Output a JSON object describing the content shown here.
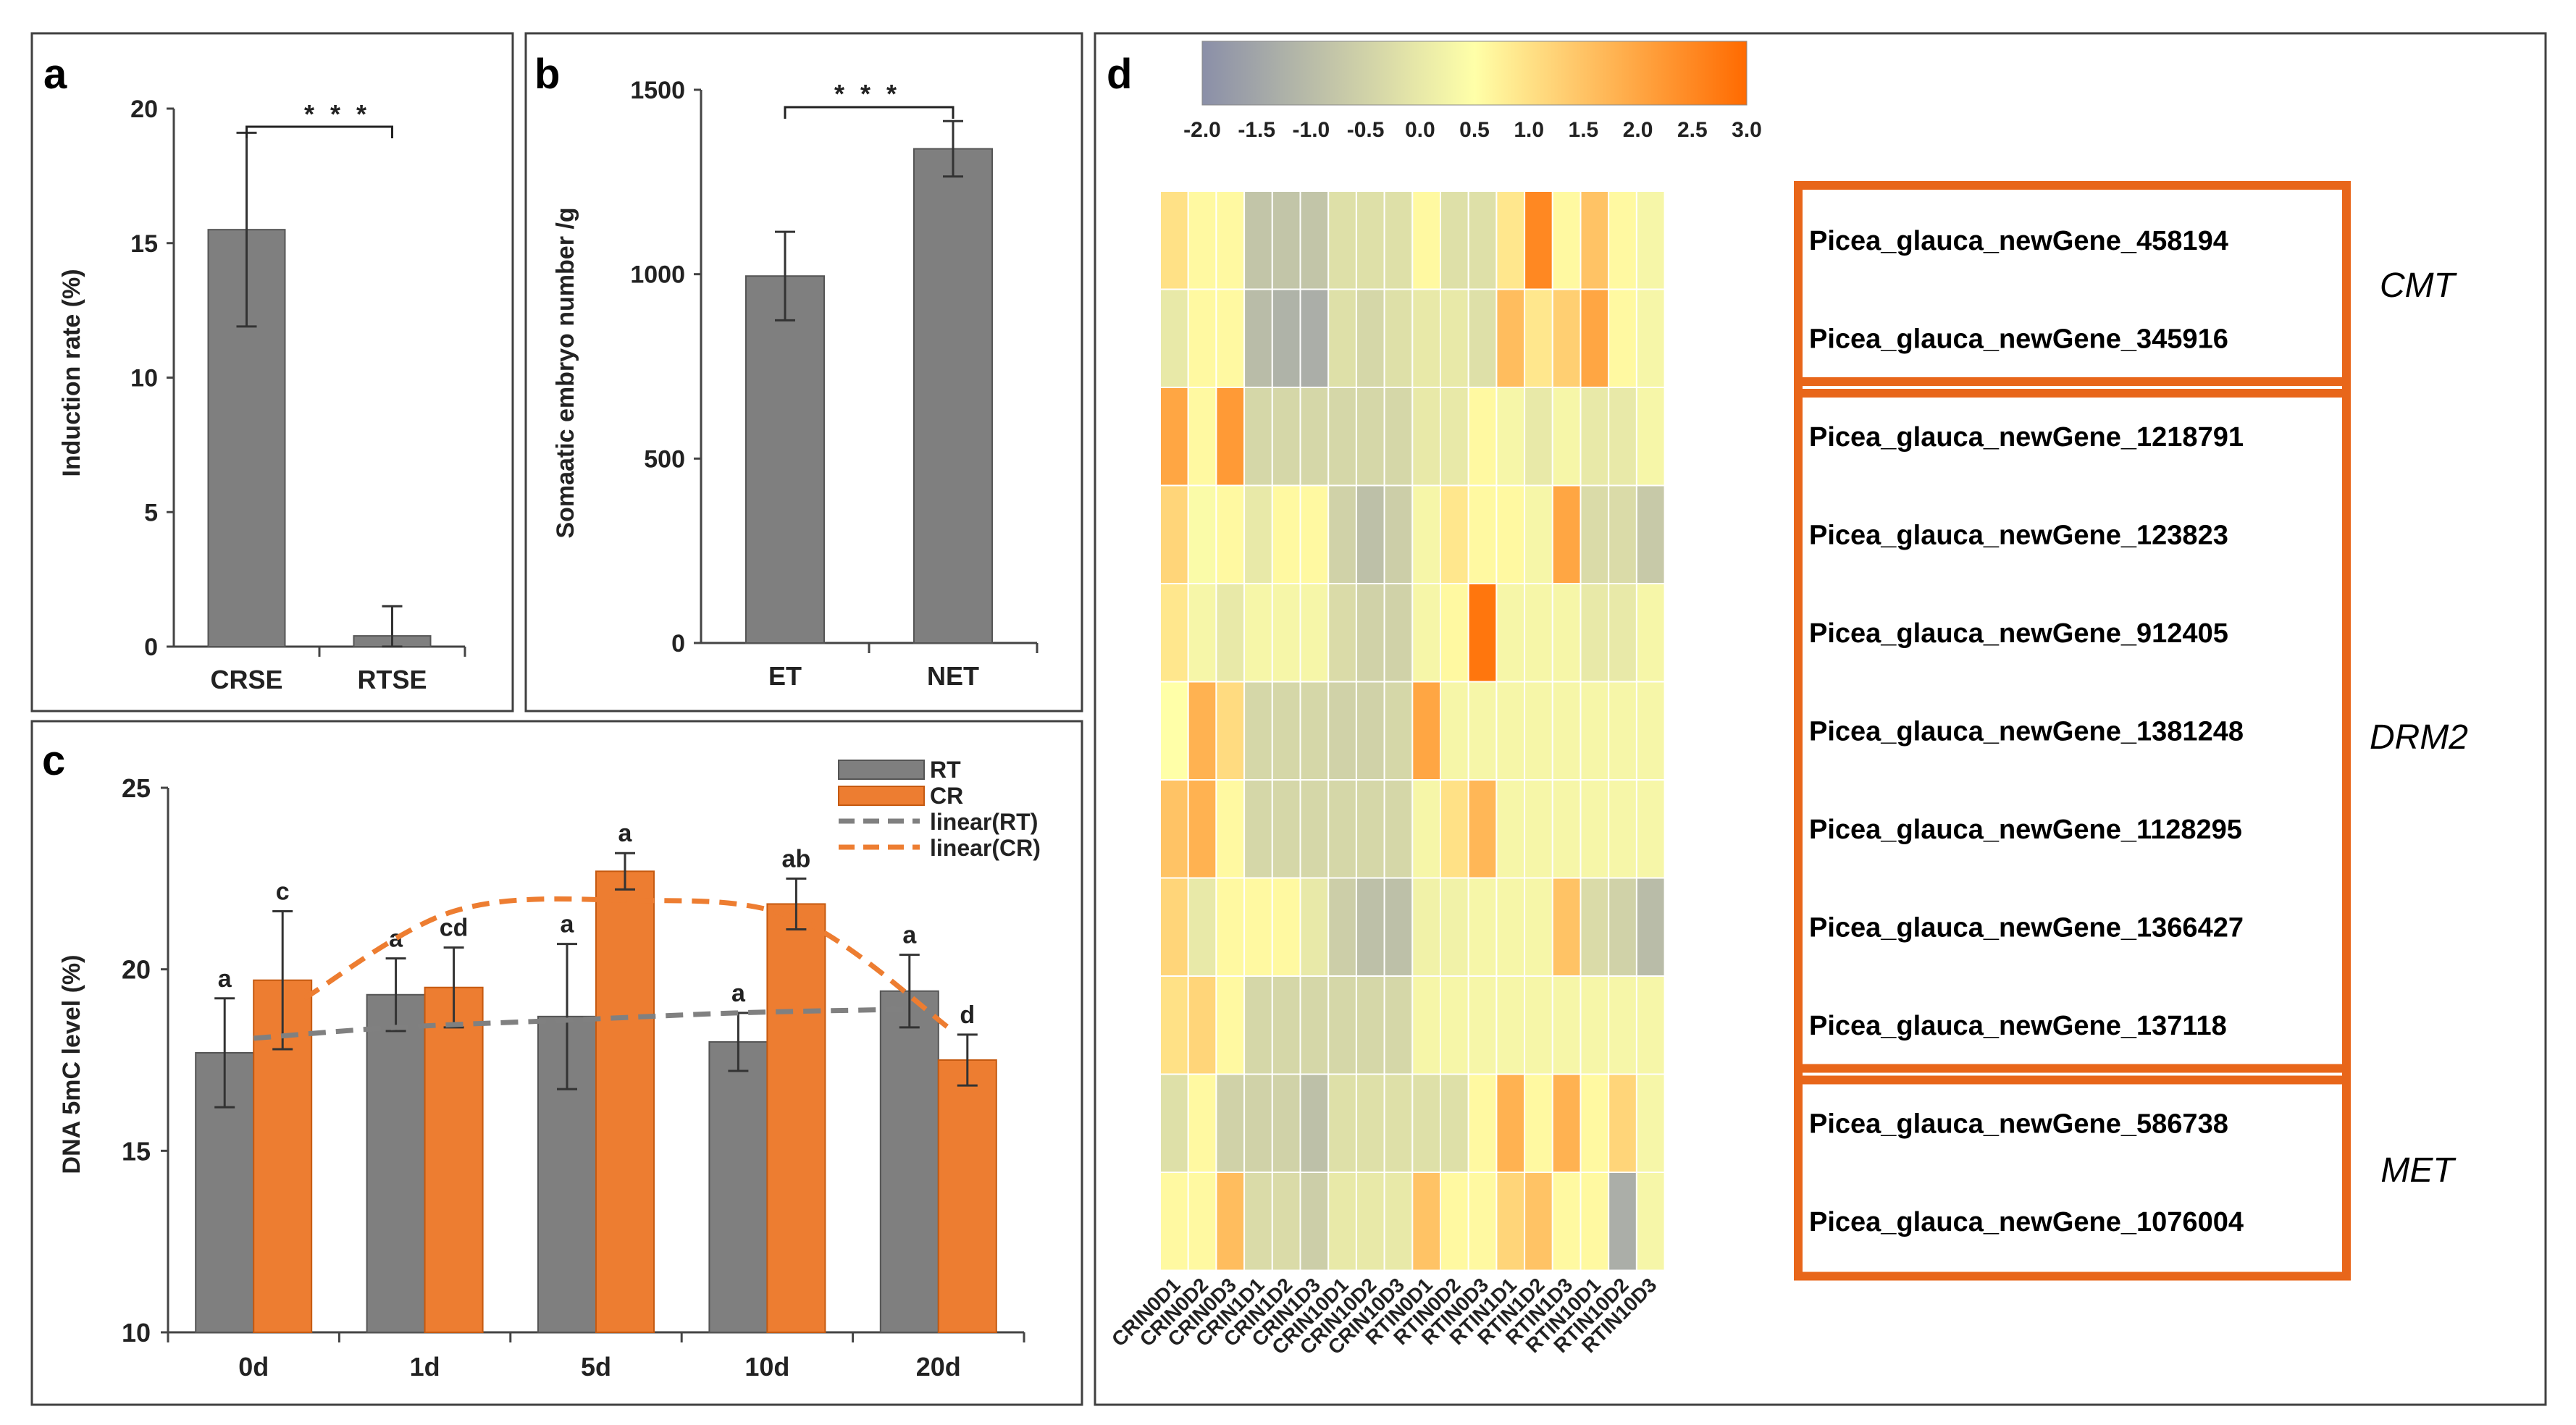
{
  "palette": {
    "gray_bar": "#7f7f7f",
    "orange_bar": "#ed7d31",
    "highlight_box": "#e8661a",
    "heat_low": "#8a8fa8",
    "heat_mid": "#ffffa8",
    "heat_high": "#ff6a00"
  },
  "chart_data": [
    {
      "panel": "a",
      "type": "bar",
      "categories": [
        "CRSE",
        "RTSE"
      ],
      "values": [
        15.5,
        0.4
      ],
      "errors": [
        3.6,
        1.1
      ],
      "ylabel": "Induction rate (%)",
      "ylim": [
        0,
        20
      ],
      "yticks": [
        "0",
        "5",
        "10",
        "15",
        "20"
      ],
      "significance": "* * *"
    },
    {
      "panel": "b",
      "type": "bar",
      "categories": [
        "ET",
        "NET"
      ],
      "values": [
        995,
        1340
      ],
      "errors": [
        120,
        75
      ],
      "ylabel": "Somaatic embryo number /g",
      "ylim": [
        0,
        1500
      ],
      "yticks": [
        "0",
        "500",
        "1000",
        "1500"
      ],
      "significance": "* * *"
    },
    {
      "panel": "c",
      "type": "bar",
      "categories": [
        "0d",
        "1d",
        "5d",
        "10d",
        "20d"
      ],
      "series": [
        {
          "name": "RT",
          "values": [
            17.7,
            19.3,
            18.7,
            18.0,
            19.4
          ],
          "errors": [
            1.5,
            1.0,
            2.0,
            0.8,
            1.0
          ],
          "letters": [
            "a",
            "a",
            "a",
            "a",
            "a"
          ]
        },
        {
          "name": "CR",
          "values": [
            19.7,
            19.5,
            22.7,
            21.8,
            17.5
          ],
          "errors": [
            1.9,
            1.1,
            0.5,
            0.7,
            0.7
          ],
          "letters": [
            "c",
            "cd",
            "a",
            "ab",
            "d"
          ]
        }
      ],
      "trendlines": [
        {
          "name": "linear(RT)",
          "points": [
            18.1,
            18.4,
            18.6,
            18.8,
            18.9
          ]
        },
        {
          "name": "linear(CR)",
          "points": [
            19.2,
            21.6,
            21.9,
            21.4,
            18.3
          ]
        }
      ],
      "ylabel": "DNA 5mC level (%)",
      "ylim": [
        10,
        25
      ],
      "yticks": [
        "10",
        "15",
        "20",
        "25"
      ],
      "legend": [
        "RT",
        "CR",
        "linear(RT)",
        "linear(CR)"
      ],
      "legend_position": "top-right"
    },
    {
      "panel": "d",
      "type": "heatmap",
      "columns": [
        "CRIN0D1",
        "CRIN0D2",
        "CRIN0D3",
        "CRIN1D1",
        "CRIN1D2",
        "CRIN1D3",
        "CRIN10D1",
        "CRIN10D2",
        "CRIN10D3",
        "RTIN0D1",
        "RTIN0D2",
        "RTIN0D3",
        "RTIN1D1",
        "RTIN1D2",
        "RTIN1D3",
        "RTIN10D1",
        "RTIN10D2",
        "RTIN10D3"
      ],
      "rows": [
        "Picea_glauca_newGene_458194",
        "Picea_glauca_newGene_345916",
        "Picea_glauca_newGene_1218791",
        "Picea_glauca_newGene_123823",
        "Picea_glauca_newGene_912405",
        "Picea_glauca_newGene_1381248",
        "Picea_glauca_newGene_1128295",
        "Picea_glauca_newGene_1366427",
        "Picea_glauca_newGene_137118",
        "Picea_glauca_newGene_586738",
        "Picea_glauca_newGene_1076004"
      ],
      "values": [
        [
          1.0,
          0.6,
          0.6,
          -0.8,
          -0.8,
          -0.8,
          -0.2,
          -0.2,
          -0.2,
          0.6,
          -0.2,
          -0.2,
          0.9,
          2.5,
          0.6,
          1.5,
          0.6,
          0.3
        ],
        [
          0.0,
          0.6,
          0.6,
          -1.0,
          -1.2,
          -1.3,
          -0.2,
          -0.4,
          -0.2,
          0.0,
          0.0,
          -0.2,
          1.6,
          0.9,
          1.3,
          2.0,
          0.6,
          0.3
        ],
        [
          2.0,
          0.6,
          2.2,
          -0.4,
          -0.4,
          -0.4,
          -0.4,
          -0.4,
          -0.4,
          0.0,
          0.0,
          0.6,
          0.3,
          0.0,
          0.3,
          0.0,
          0.0,
          0.3
        ],
        [
          1.2,
          0.4,
          0.6,
          0.0,
          0.6,
          0.6,
          -0.5,
          -0.9,
          -0.6,
          0.3,
          0.9,
          0.6,
          0.6,
          0.3,
          2.0,
          -0.3,
          -0.3,
          -0.7
        ],
        [
          0.9,
          0.3,
          0.0,
          0.3,
          0.3,
          0.3,
          -0.3,
          -0.5,
          -0.5,
          0.3,
          0.6,
          2.8,
          0.3,
          0.3,
          0.3,
          0.0,
          0.0,
          0.3
        ],
        [
          0.5,
          1.8,
          1.1,
          -0.4,
          -0.4,
          -0.4,
          -0.5,
          -0.5,
          -0.4,
          2.0,
          0.3,
          0.3,
          0.3,
          0.3,
          0.3,
          0.3,
          0.3,
          0.3
        ],
        [
          1.5,
          1.8,
          0.6,
          -0.4,
          -0.4,
          -0.4,
          -0.4,
          -0.4,
          -0.4,
          0.3,
          1.0,
          1.7,
          0.3,
          0.3,
          0.3,
          0.3,
          0.3,
          0.3
        ],
        [
          1.2,
          0.0,
          0.6,
          0.6,
          0.6,
          0.0,
          -0.6,
          -0.9,
          -0.9,
          0.2,
          0.2,
          0.3,
          0.3,
          0.3,
          1.5,
          -0.3,
          -0.5,
          -1.0
        ],
        [
          1.0,
          1.2,
          0.6,
          -0.4,
          -0.4,
          -0.4,
          -0.4,
          -0.4,
          -0.4,
          0.3,
          0.3,
          0.3,
          0.3,
          0.3,
          0.3,
          0.3,
          0.3,
          0.3
        ],
        [
          -0.2,
          0.6,
          -0.5,
          -0.5,
          -0.5,
          -0.9,
          -0.2,
          -0.2,
          -0.2,
          -0.2,
          -0.2,
          0.6,
          1.8,
          0.6,
          1.8,
          0.6,
          1.2,
          0.3
        ],
        [
          0.6,
          0.6,
          1.6,
          -0.3,
          -0.3,
          -0.6,
          0.0,
          0.0,
          0.0,
          1.5,
          0.6,
          0.6,
          1.2,
          1.5,
          0.6,
          0.6,
          -1.3,
          0.3
        ]
      ],
      "colorbar_ticks": [
        "-2.0",
        "-1.5",
        "-1.0",
        "-0.5",
        "0.0",
        "0.5",
        "1.0",
        "1.5",
        "2.0",
        "2.5",
        "3.0"
      ],
      "colorbar_range": [
        -2.0,
        3.0
      ],
      "groups": [
        {
          "name": "CMT",
          "from_row": 0,
          "to_row": 1
        },
        {
          "name": "DRM2",
          "from_row": 2,
          "to_row": 8
        },
        {
          "name": "MET",
          "from_row": 9,
          "to_row": 10
        }
      ]
    }
  ],
  "panel_labels": {
    "a": "a",
    "b": "b",
    "c": "c",
    "d": "d"
  }
}
